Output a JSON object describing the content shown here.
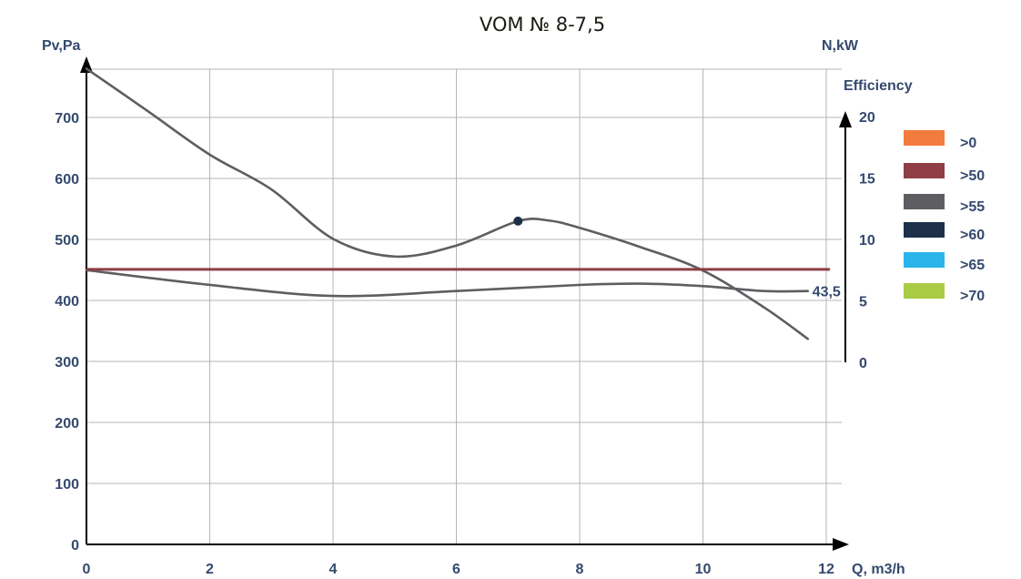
{
  "chart_data": {
    "type": "line",
    "title": "VOM № 8-7,5",
    "xlabel": "Q, m3/h",
    "ylabel_left": "Pv,Pa",
    "ylabel_right": "N,kW",
    "ylabel_right_secondary": "Efficiency",
    "x_ticks": [
      "0",
      "2",
      "4",
      "6",
      "8",
      "10",
      "12"
    ],
    "y_left_ticks": [
      "0",
      "100",
      "200",
      "300",
      "400",
      "500",
      "600",
      "700"
    ],
    "y_right_ticks": [
      "0",
      "5",
      "10",
      "15",
      "20"
    ],
    "xlim": [
      0,
      12
    ],
    "ylim_left": [
      0,
      780
    ],
    "ylim_right": [
      0,
      20
    ],
    "grid": true,
    "legend_position": "right",
    "legend": [
      {
        "label": ">0",
        "color": "#f47b3f"
      },
      {
        "label": ">50",
        "color": "#8e3e44"
      },
      {
        "label": ">55",
        "color": "#5e5e62"
      },
      {
        "label": ">60",
        "color": "#1c3149"
      },
      {
        "label": ">65",
        "color": "#2ab4ea"
      },
      {
        "label": ">70",
        "color": "#a9cc44"
      }
    ],
    "series": [
      {
        "name": "Pressure Pv (Pa)",
        "axis": "left",
        "color": "#5e5e62",
        "x": [
          0,
          1,
          2,
          3,
          4,
          5,
          6,
          7,
          7.5,
          8,
          9,
          10,
          11,
          11.7
        ],
        "values": [
          780,
          710,
          639,
          582,
          501,
          472,
          490,
          530,
          531,
          519,
          487,
          449,
          388,
          337
        ]
      },
      {
        "name": "Power N (kW)",
        "axis": "right",
        "color": "#5e5e62",
        "x": [
          0,
          2,
          4,
          6,
          8,
          9,
          10,
          11,
          11.7
        ],
        "values": [
          7.5,
          6.3,
          5.4,
          5.8,
          6.3,
          6.4,
          6.2,
          5.8,
          5.8
        ],
        "end_label": "43,5"
      },
      {
        "name": "Efficiency >50 band",
        "axis": "left",
        "color": "#8e3e44",
        "x": [
          0,
          12
        ],
        "values": [
          451,
          451
        ]
      }
    ],
    "annotations": [
      {
        "type": "point",
        "x": 7,
        "y": 530,
        "color": "#1c3149",
        "label": "operating point"
      },
      {
        "type": "text",
        "text": "43,5",
        "x": 11.7,
        "axis": "right",
        "y": 5.8
      }
    ]
  },
  "labels": {
    "title": "VOM № 8-7,5",
    "y_left": "Pv,Pa",
    "y_right": "N,kW",
    "efficiency": "Efficiency",
    "x_axis": "Q, m3/h",
    "end_value": "43,5"
  }
}
